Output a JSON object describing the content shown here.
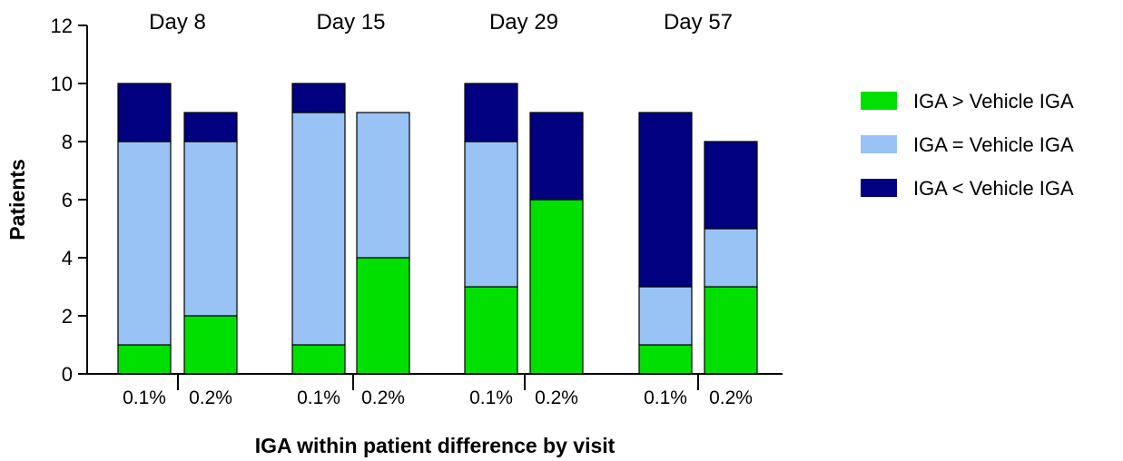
{
  "chart_data": {
    "type": "bar",
    "stacked": true,
    "xlabel": "IGA within patient difference by visit",
    "ylabel": "Patients",
    "ylim": [
      0,
      12
    ],
    "yticks": [
      0,
      2,
      4,
      6,
      8,
      10,
      12
    ],
    "groups": [
      "Day 8",
      "Day 15",
      "Day 29",
      "Day 57"
    ],
    "categories": [
      "0.1%",
      "0.2%",
      "0.1%",
      "0.2%",
      "0.1%",
      "0.2%",
      "0.1%",
      "0.2%"
    ],
    "series": [
      {
        "name": "IGA > Vehicle IGA",
        "color": "#00e000",
        "values": [
          1,
          2,
          1,
          4,
          3,
          6,
          1,
          3
        ]
      },
      {
        "name": "IGA = Vehicle IGA",
        "color": "#99c2f5",
        "values": [
          7,
          6,
          8,
          5,
          5,
          0,
          2,
          2
        ]
      },
      {
        "name": "IGA < Vehicle IGA",
        "color": "#000080",
        "values": [
          2,
          1,
          1,
          0,
          2,
          3,
          6,
          3
        ]
      }
    ],
    "legend_position": "right",
    "grid": false
  }
}
